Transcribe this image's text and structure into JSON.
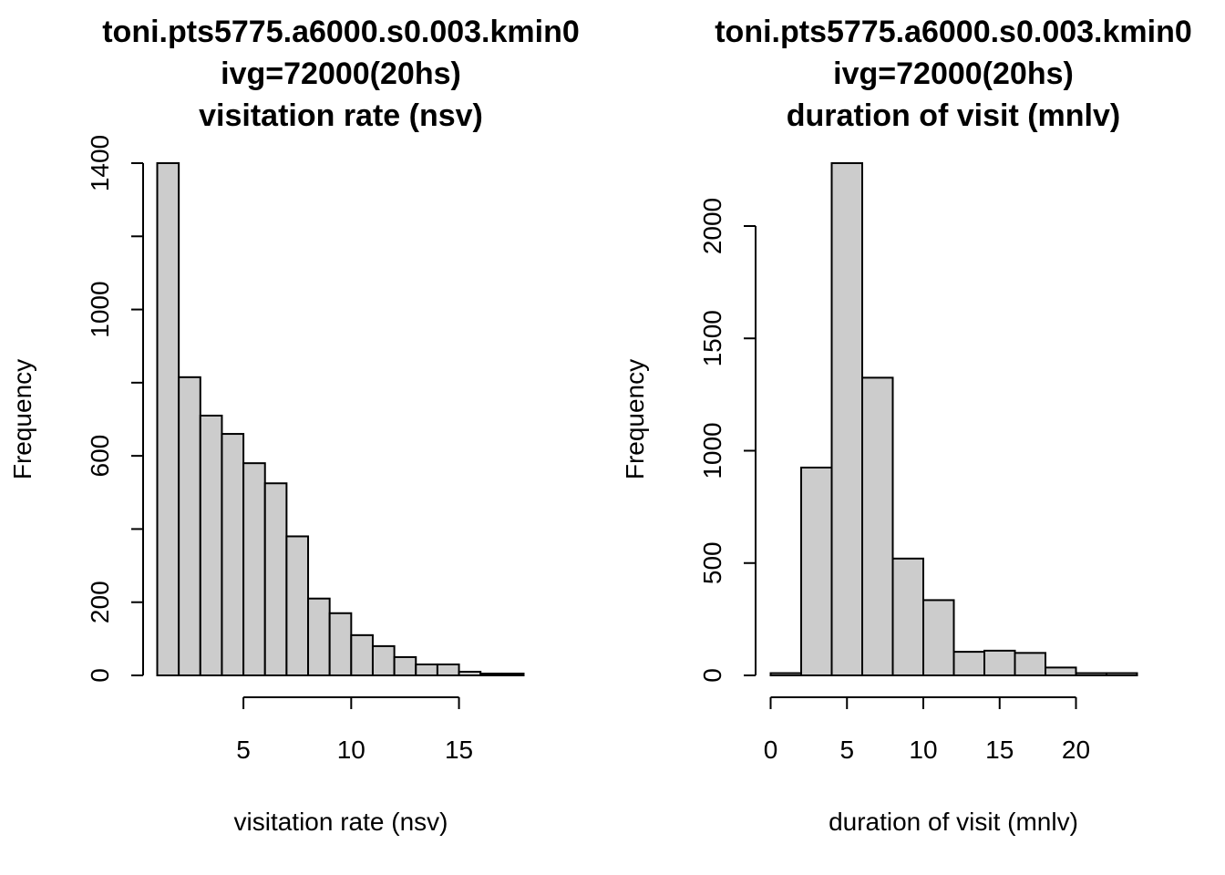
{
  "chart_data": [
    {
      "type": "bar",
      "title": [
        "toni.pts5775.a6000.s0.003.kmin0",
        "ivg=72000(20hs)",
        "visitation rate (nsv)"
      ],
      "xlabel": "visitation rate (nsv)",
      "ylabel": "Frequency",
      "bin_edges": [
        1,
        2,
        3,
        4,
        5,
        6,
        7,
        8,
        9,
        10,
        11,
        12,
        13,
        14,
        15,
        16,
        17,
        18
      ],
      "values": [
        1400,
        815,
        710,
        660,
        580,
        525,
        380,
        210,
        170,
        110,
        80,
        50,
        30,
        30,
        10,
        5,
        5
      ],
      "xlim": [
        1,
        18
      ],
      "ylim": [
        0,
        1400
      ],
      "xticks": [
        5,
        10,
        15
      ],
      "yticks": [
        0,
        200,
        600,
        1000,
        1400
      ],
      "y_minor_ticks": [
        0,
        200,
        400,
        600,
        800,
        1000,
        1200,
        1400
      ],
      "grid": false
    },
    {
      "type": "bar",
      "title": [
        "toni.pts5775.a6000.s0.003.kmin0",
        "ivg=72000(20hs)",
        "duration of visit (mnlv)"
      ],
      "xlabel": "duration of visit (mnlv)",
      "ylabel": "Frequency",
      "bin_edges": [
        0,
        2,
        4,
        6,
        8,
        10,
        12,
        14,
        16,
        18,
        20,
        22,
        24
      ],
      "values": [
        10,
        925,
        2280,
        1325,
        520,
        335,
        105,
        110,
        100,
        35,
        10,
        10
      ],
      "xlim": [
        0,
        24
      ],
      "ylim": [
        0,
        2000
      ],
      "xticks": [
        0,
        5,
        10,
        15,
        20
      ],
      "yticks": [
        0,
        500,
        1000,
        1500,
        2000
      ],
      "grid": false
    }
  ]
}
